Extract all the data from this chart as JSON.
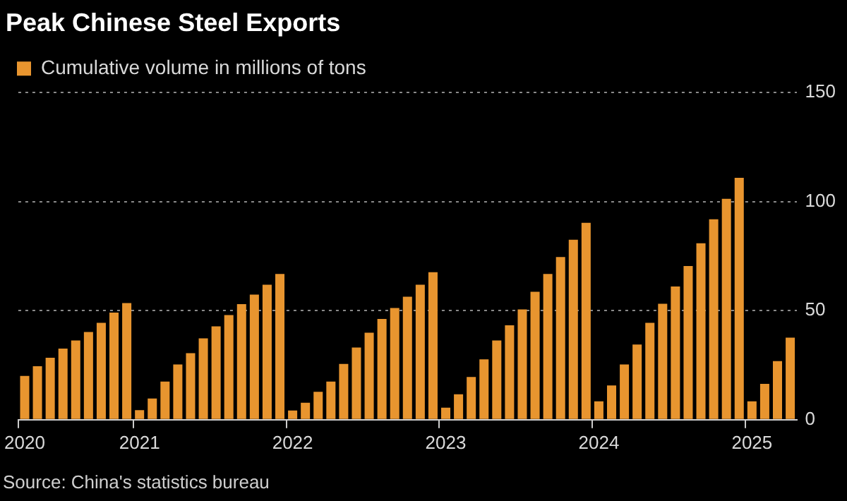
{
  "chart_data": {
    "type": "bar",
    "title": "Peak Chinese Steel Exports",
    "categories": [
      "2020",
      null,
      null,
      null,
      null,
      null,
      null,
      null,
      null,
      "2021",
      null,
      null,
      null,
      null,
      null,
      null,
      null,
      null,
      null,
      null,
      null,
      "2022",
      null,
      null,
      null,
      null,
      null,
      null,
      null,
      null,
      null,
      null,
      null,
      "2023",
      null,
      null,
      null,
      null,
      null,
      null,
      null,
      null,
      null,
      null,
      null,
      "2024",
      null,
      null,
      null,
      null,
      null,
      null,
      null,
      null,
      null,
      null,
      null,
      "2025",
      null,
      null,
      null
    ],
    "series": [
      {
        "name": "Cumulative volume in millions of tons",
        "color": "#e8952f",
        "values": [
          20.1,
          24.5,
          28.4,
          32.6,
          36.3,
          40.2,
          44.4,
          49.1,
          53.5,
          4.4,
          9.7,
          17.5,
          25.3,
          30.5,
          37.3,
          42.8,
          48,
          53,
          57.4,
          61.9,
          66.8,
          4.2,
          7.8,
          12.8,
          17.5,
          25.6,
          33.1,
          39.9,
          46.2,
          51.2,
          56.4,
          61.9,
          67.6,
          5.5,
          11.7,
          19.6,
          27.7,
          36.3,
          43.3,
          50.6,
          58.7,
          66.8,
          74.6,
          82.5,
          90.3,
          8.4,
          15.7,
          25.3,
          34.5,
          44.4,
          53.2,
          61.1,
          70.5,
          80.9,
          91.9,
          101.3,
          110.9,
          8.4,
          16.4,
          26.9,
          37.6
        ]
      }
    ],
    "ylim": [
      0,
      150
    ],
    "yticks": [
      0,
      50,
      100,
      150
    ],
    "grid": "y",
    "legend": "top left",
    "annotations": [
      "Source: China's statistics bureau"
    ]
  }
}
